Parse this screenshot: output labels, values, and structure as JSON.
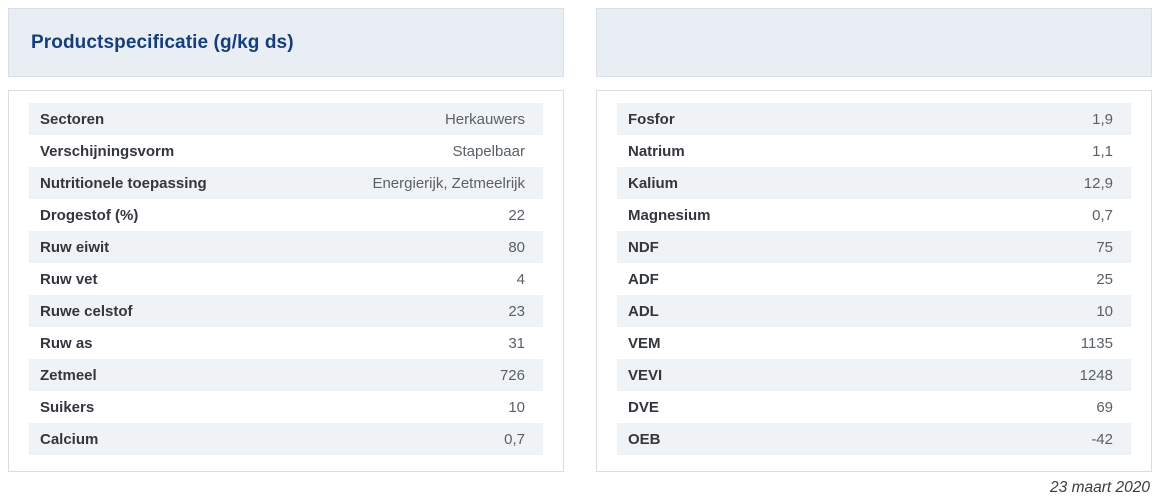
{
  "page": {
    "title": "Productspecificatie (g/kg ds)",
    "date": "23 maart 2020"
  },
  "left_table": {
    "rows": [
      {
        "label": "Sectoren",
        "value": "Herkauwers"
      },
      {
        "label": "Verschijningsvorm",
        "value": "Stapelbaar"
      },
      {
        "label": "Nutritionele toepassing",
        "value": "Energierijk, Zetmeelrijk"
      },
      {
        "label": "Drogestof (%)",
        "value": "22"
      },
      {
        "label": "Ruw eiwit",
        "value": "80"
      },
      {
        "label": "Ruw vet",
        "value": "4"
      },
      {
        "label": "Ruwe celstof",
        "value": "23"
      },
      {
        "label": "Ruw as",
        "value": "31"
      },
      {
        "label": "Zetmeel",
        "value": "726"
      },
      {
        "label": "Suikers",
        "value": "10"
      },
      {
        "label": "Calcium",
        "value": "0,7"
      }
    ]
  },
  "right_table": {
    "rows": [
      {
        "label": "Fosfor",
        "value": "1,9"
      },
      {
        "label": "Natrium",
        "value": "1,1"
      },
      {
        "label": "Kalium",
        "value": "12,9"
      },
      {
        "label": "Magnesium",
        "value": "0,7"
      },
      {
        "label": "NDF",
        "value": "75"
      },
      {
        "label": "ADF",
        "value": "25"
      },
      {
        "label": "ADL",
        "value": "10"
      },
      {
        "label": "VEM",
        "value": "1135"
      },
      {
        "label": "VEVI",
        "value": "1248"
      },
      {
        "label": "DVE",
        "value": "69"
      },
      {
        "label": "OEB",
        "value": "-42"
      }
    ]
  },
  "colors": {
    "title_text": "#163d7c",
    "panel_header_bg": "#e9eef5",
    "panel_border": "#d9dee6",
    "row_stripe_bg": "#f0f3f6",
    "label_text": "#33373d",
    "value_text": "#5a6068",
    "date_text": "#3c3c3c"
  }
}
